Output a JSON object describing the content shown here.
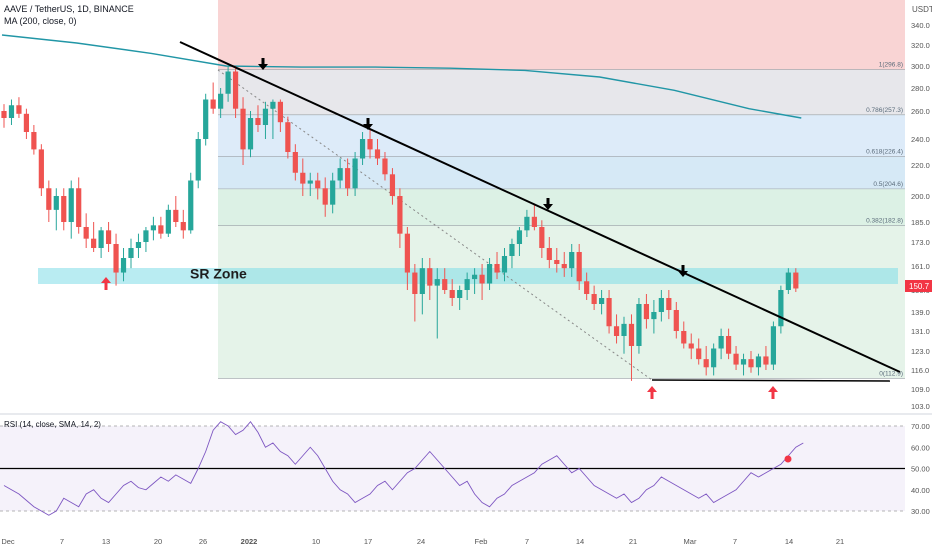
{
  "header": {
    "symbol_line": "AAVE / TetherUS, 1D, BINANCE",
    "ma_line": "MA (200, close, 0)",
    "currency": "USDT"
  },
  "rsi_header": "RSI (14, close, SMA, 14, 2)",
  "sr_zone_label": "SR Zone",
  "price_badge": "150.7",
  "colors": {
    "up": "#26a69a",
    "down": "#ef5350",
    "ma": "#2196a6",
    "rsi_line": "#7e57c2",
    "badge": "#f23645",
    "sr_zone": "#7fdde8",
    "trendline": "#000000"
  },
  "chart_data": {
    "type": "candlestick",
    "title": "AAVE / TetherUS, 1D, BINANCE",
    "price_axis_ticks": [
      "340.0",
      "320.0",
      "300.0",
      "280.0",
      "260.0",
      "240.0",
      "220.0",
      "200.0",
      "185.0",
      "173.0",
      "161.0",
      "150.0",
      "139.0",
      "131.0",
      "123.0",
      "116.0",
      "109.0",
      "103.0"
    ],
    "x_ticks": [
      "Dec",
      "7",
      "13",
      "20",
      "26",
      "2022",
      "10",
      "17",
      "24",
      "Feb",
      "7",
      "14",
      "21",
      "Mar",
      "7",
      "14",
      "21"
    ],
    "fibonacci": {
      "levels": [
        {
          "ratio": 1,
          "label": "1(296.8)",
          "price": 296.8
        },
        {
          "ratio": 0.786,
          "label": "0.786(257.3)",
          "price": 257.3
        },
        {
          "ratio": 0.618,
          "label": "0.618(226.4)",
          "price": 226.4
        },
        {
          "ratio": 0.5,
          "label": "0.5(204.6)",
          "price": 204.6
        },
        {
          "ratio": 0.382,
          "label": "0.382(182.8)",
          "price": 182.8
        },
        {
          "ratio": 0,
          "label": "0(112.9)",
          "price": 112.9
        }
      ]
    },
    "sr_zone": {
      "label": "SR Zone",
      "from": 151,
      "to": 160
    },
    "last_price": 150.7,
    "candles": [
      {
        "o": 260,
        "h": 266,
        "l": 248,
        "c": 255
      },
      {
        "o": 255,
        "h": 270,
        "l": 250,
        "c": 265
      },
      {
        "o": 265,
        "h": 272,
        "l": 255,
        "c": 258
      },
      {
        "o": 258,
        "h": 262,
        "l": 240,
        "c": 245
      },
      {
        "o": 245,
        "h": 250,
        "l": 228,
        "c": 232
      },
      {
        "o": 232,
        "h": 236,
        "l": 200,
        "c": 205
      },
      {
        "o": 205,
        "h": 210,
        "l": 185,
        "c": 192
      },
      {
        "o": 192,
        "h": 205,
        "l": 180,
        "c": 200
      },
      {
        "o": 200,
        "h": 205,
        "l": 180,
        "c": 185
      },
      {
        "o": 185,
        "h": 210,
        "l": 175,
        "c": 205
      },
      {
        "o": 205,
        "h": 212,
        "l": 178,
        "c": 182
      },
      {
        "o": 182,
        "h": 190,
        "l": 170,
        "c": 175
      },
      {
        "o": 175,
        "h": 185,
        "l": 168,
        "c": 170
      },
      {
        "o": 170,
        "h": 182,
        "l": 165,
        "c": 180
      },
      {
        "o": 180,
        "h": 185,
        "l": 168,
        "c": 172
      },
      {
        "o": 172,
        "h": 178,
        "l": 152,
        "c": 158
      },
      {
        "o": 158,
        "h": 170,
        "l": 154,
        "c": 165
      },
      {
        "o": 165,
        "h": 175,
        "l": 160,
        "c": 170
      },
      {
        "o": 170,
        "h": 178,
        "l": 165,
        "c": 173
      },
      {
        "o": 173,
        "h": 182,
        "l": 168,
        "c": 180
      },
      {
        "o": 180,
        "h": 188,
        "l": 174,
        "c": 183
      },
      {
        "o": 183,
        "h": 188,
        "l": 175,
        "c": 178
      },
      {
        "o": 178,
        "h": 195,
        "l": 176,
        "c": 192
      },
      {
        "o": 192,
        "h": 200,
        "l": 182,
        "c": 185
      },
      {
        "o": 185,
        "h": 192,
        "l": 175,
        "c": 180
      },
      {
        "o": 180,
        "h": 215,
        "l": 178,
        "c": 210
      },
      {
        "o": 210,
        "h": 245,
        "l": 205,
        "c": 240
      },
      {
        "o": 240,
        "h": 275,
        "l": 235,
        "c": 270
      },
      {
        "o": 270,
        "h": 285,
        "l": 258,
        "c": 262
      },
      {
        "o": 262,
        "h": 280,
        "l": 255,
        "c": 275
      },
      {
        "o": 275,
        "h": 300,
        "l": 268,
        "c": 295
      },
      {
        "o": 295,
        "h": 300,
        "l": 255,
        "c": 262
      },
      {
        "o": 262,
        "h": 272,
        "l": 220,
        "c": 232
      },
      {
        "o": 232,
        "h": 260,
        "l": 226,
        "c": 255
      },
      {
        "o": 255,
        "h": 265,
        "l": 245,
        "c": 250
      },
      {
        "o": 250,
        "h": 268,
        "l": 240,
        "c": 262
      },
      {
        "o": 262,
        "h": 270,
        "l": 240,
        "c": 268
      },
      {
        "o": 268,
        "h": 270,
        "l": 245,
        "c": 252
      },
      {
        "o": 252,
        "h": 256,
        "l": 225,
        "c": 230
      },
      {
        "o": 230,
        "h": 236,
        "l": 210,
        "c": 215
      },
      {
        "o": 215,
        "h": 225,
        "l": 200,
        "c": 208
      },
      {
        "o": 208,
        "h": 215,
        "l": 200,
        "c": 210
      },
      {
        "o": 210,
        "h": 215,
        "l": 198,
        "c": 205
      },
      {
        "o": 205,
        "h": 212,
        "l": 188,
        "c": 195
      },
      {
        "o": 195,
        "h": 215,
        "l": 190,
        "c": 210
      },
      {
        "o": 210,
        "h": 225,
        "l": 205,
        "c": 218
      },
      {
        "o": 218,
        "h": 225,
        "l": 200,
        "c": 205
      },
      {
        "o": 205,
        "h": 230,
        "l": 200,
        "c": 225
      },
      {
        "o": 225,
        "h": 245,
        "l": 220,
        "c": 240
      },
      {
        "o": 240,
        "h": 248,
        "l": 225,
        "c": 232
      },
      {
        "o": 232,
        "h": 240,
        "l": 220,
        "c": 225
      },
      {
        "o": 225,
        "h": 230,
        "l": 210,
        "c": 214
      },
      {
        "o": 214,
        "h": 218,
        "l": 195,
        "c": 200
      },
      {
        "o": 200,
        "h": 205,
        "l": 170,
        "c": 178
      },
      {
        "o": 178,
        "h": 182,
        "l": 150,
        "c": 158
      },
      {
        "o": 158,
        "h": 162,
        "l": 135,
        "c": 148
      },
      {
        "o": 148,
        "h": 165,
        "l": 138,
        "c": 160
      },
      {
        "o": 160,
        "h": 165,
        "l": 145,
        "c": 152
      },
      {
        "o": 152,
        "h": 160,
        "l": 128,
        "c": 155
      },
      {
        "o": 155,
        "h": 160,
        "l": 148,
        "c": 150
      },
      {
        "o": 150,
        "h": 155,
        "l": 142,
        "c": 146
      },
      {
        "o": 146,
        "h": 152,
        "l": 140,
        "c": 150
      },
      {
        "o": 150,
        "h": 158,
        "l": 145,
        "c": 155
      },
      {
        "o": 155,
        "h": 160,
        "l": 148,
        "c": 157
      },
      {
        "o": 157,
        "h": 162,
        "l": 145,
        "c": 153
      },
      {
        "o": 153,
        "h": 165,
        "l": 150,
        "c": 162
      },
      {
        "o": 162,
        "h": 168,
        "l": 155,
        "c": 158
      },
      {
        "o": 158,
        "h": 170,
        "l": 154,
        "c": 166
      },
      {
        "o": 166,
        "h": 175,
        "l": 160,
        "c": 172
      },
      {
        "o": 172,
        "h": 182,
        "l": 166,
        "c": 180
      },
      {
        "o": 180,
        "h": 192,
        "l": 176,
        "c": 188
      },
      {
        "o": 188,
        "h": 195,
        "l": 180,
        "c": 182
      },
      {
        "o": 182,
        "h": 186,
        "l": 165,
        "c": 170
      },
      {
        "o": 170,
        "h": 176,
        "l": 160,
        "c": 164
      },
      {
        "o": 164,
        "h": 170,
        "l": 158,
        "c": 162
      },
      {
        "o": 162,
        "h": 168,
        "l": 156,
        "c": 160
      },
      {
        "o": 160,
        "h": 172,
        "l": 156,
        "c": 168
      },
      {
        "o": 168,
        "h": 172,
        "l": 150,
        "c": 154
      },
      {
        "o": 154,
        "h": 158,
        "l": 145,
        "c": 148
      },
      {
        "o": 148,
        "h": 152,
        "l": 140,
        "c": 143
      },
      {
        "o": 143,
        "h": 150,
        "l": 138,
        "c": 146
      },
      {
        "o": 146,
        "h": 150,
        "l": 130,
        "c": 133
      },
      {
        "o": 133,
        "h": 138,
        "l": 126,
        "c": 129
      },
      {
        "o": 129,
        "h": 137,
        "l": 122,
        "c": 134
      },
      {
        "o": 134,
        "h": 138,
        "l": 112,
        "c": 125
      },
      {
        "o": 125,
        "h": 146,
        "l": 122,
        "c": 143
      },
      {
        "o": 143,
        "h": 148,
        "l": 132,
        "c": 136
      },
      {
        "o": 136,
        "h": 145,
        "l": 130,
        "c": 139
      },
      {
        "o": 139,
        "h": 150,
        "l": 135,
        "c": 146
      },
      {
        "o": 146,
        "h": 150,
        "l": 136,
        "c": 140
      },
      {
        "o": 140,
        "h": 144,
        "l": 128,
        "c": 131
      },
      {
        "o": 131,
        "h": 135,
        "l": 124,
        "c": 126
      },
      {
        "o": 126,
        "h": 130,
        "l": 120,
        "c": 124
      },
      {
        "o": 124,
        "h": 128,
        "l": 118,
        "c": 120
      },
      {
        "o": 120,
        "h": 125,
        "l": 114,
        "c": 117
      },
      {
        "o": 117,
        "h": 126,
        "l": 114,
        "c": 124
      },
      {
        "o": 124,
        "h": 132,
        "l": 120,
        "c": 129
      },
      {
        "o": 129,
        "h": 132,
        "l": 120,
        "c": 122
      },
      {
        "o": 122,
        "h": 125,
        "l": 116,
        "c": 118
      },
      {
        "o": 118,
        "h": 122,
        "l": 114,
        "c": 120
      },
      {
        "o": 120,
        "h": 123,
        "l": 115,
        "c": 117
      },
      {
        "o": 117,
        "h": 122,
        "l": 114,
        "c": 121
      },
      {
        "o": 121,
        "h": 125,
        "l": 116,
        "c": 118
      },
      {
        "o": 118,
        "h": 135,
        "l": 116,
        "c": 133
      },
      {
        "o": 133,
        "h": 152,
        "l": 130,
        "c": 150
      },
      {
        "o": 150,
        "h": 160,
        "l": 148,
        "c": 158
      },
      {
        "o": 158,
        "h": 160,
        "l": 149,
        "c": 150.7
      }
    ],
    "ma200": [
      [
        0,
        330
      ],
      [
        10,
        322
      ],
      [
        20,
        312
      ],
      [
        30,
        300
      ],
      [
        40,
        299
      ],
      [
        50,
        299
      ],
      [
        60,
        298
      ],
      [
        70,
        296
      ],
      [
        80,
        290
      ],
      [
        90,
        278
      ],
      [
        100,
        262
      ],
      [
        107,
        255
      ]
    ],
    "rsi": {
      "levels": [
        70,
        50,
        30
      ],
      "axis_ticks": [
        "70.00",
        "60.00",
        "50.00",
        "40.00",
        "30.00"
      ],
      "values": [
        42,
        40,
        38,
        35,
        32,
        30,
        28,
        30,
        36,
        34,
        32,
        38,
        40,
        36,
        34,
        38,
        42,
        44,
        41,
        40,
        43,
        46,
        44,
        47,
        45,
        43,
        50,
        58,
        68,
        72,
        70,
        66,
        68,
        72,
        67,
        60,
        62,
        58,
        56,
        52,
        56,
        60,
        56,
        50,
        44,
        40,
        38,
        34,
        36,
        38,
        42,
        44,
        40,
        44,
        48,
        50,
        54,
        58,
        54,
        50,
        46,
        42,
        44,
        38,
        34,
        32,
        36,
        38,
        42,
        44,
        46,
        48,
        52,
        54,
        56,
        52,
        48,
        50,
        46,
        42,
        40,
        38,
        36,
        38,
        34,
        36,
        40,
        42,
        46,
        44,
        42,
        40,
        38,
        36,
        38,
        34,
        36,
        38,
        40,
        44,
        48,
        46,
        48,
        50,
        52,
        56,
        60,
        62
      ]
    }
  }
}
